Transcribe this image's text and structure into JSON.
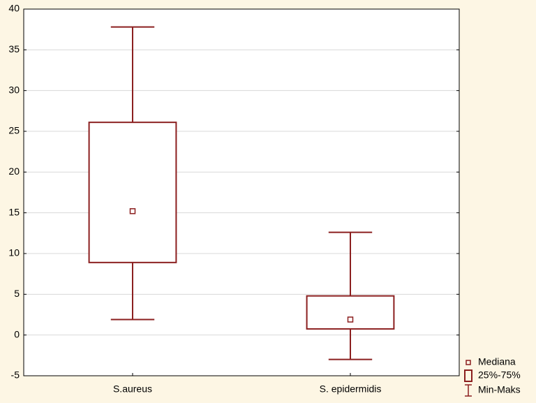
{
  "chart_data": {
    "type": "box",
    "categories": [
      "S.aureus",
      "S. epidermidis"
    ],
    "min": [
      1.9,
      -3.0
    ],
    "q1": [
      8.9,
      0.75
    ],
    "median": [
      15.2,
      1.9
    ],
    "q3": [
      26.1,
      4.8
    ],
    "max": [
      37.8,
      12.6
    ],
    "color": "#8b1f1f",
    "ylim": [
      -5,
      40
    ],
    "yticks": [
      -5,
      0,
      5,
      10,
      15,
      20,
      25,
      30,
      35,
      40
    ],
    "grid": true,
    "legend_labels": [
      "Mediana",
      "25%-75%",
      "Min-Maks"
    ]
  }
}
